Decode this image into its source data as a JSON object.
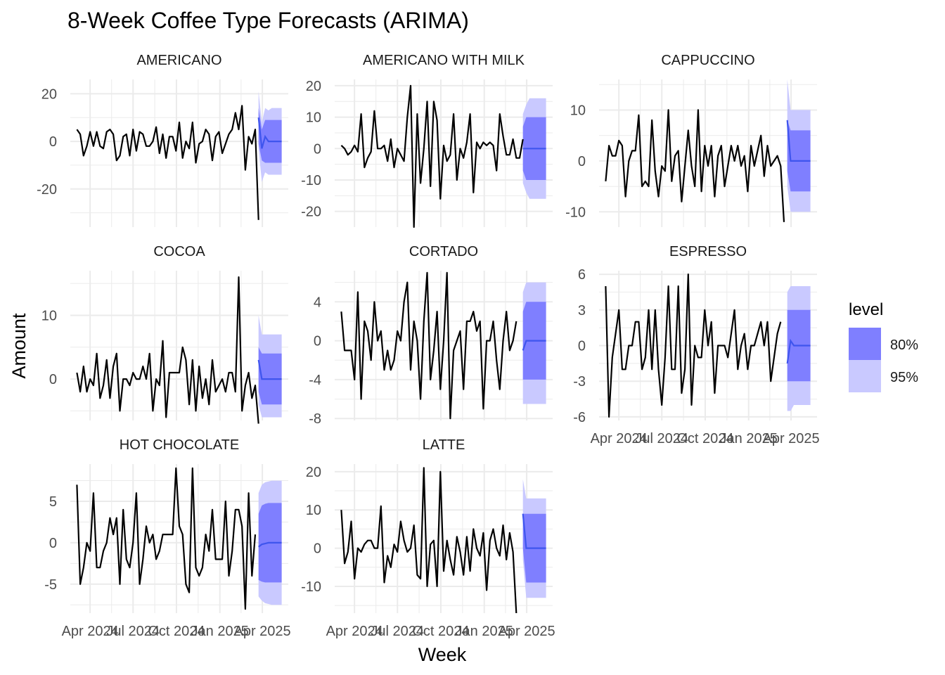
{
  "chart_data": {
    "type": "line",
    "title": "8-Week Coffee Type Forecasts (ARIMA)",
    "xlabel": "Week",
    "ylabel": "Amount",
    "x_tick_labels": [
      "Apr 2024",
      "Jul 2024",
      "Oct 2024",
      "Jan 2025",
      "Apr 2025"
    ],
    "x_tick_dates": [
      "2024-04-01",
      "2024-07-01",
      "2024-10-01",
      "2025-01-01",
      "2025-04-01"
    ],
    "history_start": "2024-03-04",
    "forecast_start": "2025-03-24",
    "xlim": [
      "2024-02-19",
      "2025-05-26"
    ],
    "legend": {
      "title": "level",
      "position": "right",
      "items": [
        {
          "label": "80%",
          "color": "#7f7fff"
        },
        {
          "label": "95%",
          "color": "#c9c9ff"
        }
      ]
    },
    "colors": {
      "history": "#000000",
      "forecast_mean": "#3f55ee",
      "band_80": "#7f7fff",
      "band_95": "#c9c9ff",
      "grid": "#ebebeb"
    },
    "grid": true,
    "panels": [
      {
        "name": "AMERICANO",
        "y_ticks": [
          -20,
          0,
          20
        ],
        "ylim": [
          -36,
          26
        ],
        "history": [
          5,
          3,
          -6,
          -2,
          4,
          -2,
          4,
          -2,
          -3,
          4,
          5,
          3,
          -8,
          -6,
          2,
          3,
          -6,
          5,
          -4,
          4,
          3,
          -2,
          -2,
          0,
          6,
          -5,
          3,
          -7,
          2,
          2,
          -4,
          8,
          -7,
          0,
          -3,
          8,
          -9,
          -1,
          0,
          5,
          3,
          -8,
          2,
          4,
          -5,
          -1,
          3,
          5,
          12,
          5,
          15,
          -12,
          2,
          -1,
          5,
          -33
        ],
        "forecast": {
          "mean": [
            10,
            -3,
            2,
            0,
            0,
            0,
            0,
            0
          ],
          "lo80": [
            -1,
            -8,
            -9,
            -9,
            -9,
            -9,
            -9,
            -9
          ],
          "hi80": [
            14,
            5,
            9,
            9,
            9,
            9,
            9,
            9
          ],
          "lo95": [
            -3,
            -17,
            -13,
            -14,
            -14,
            -14,
            -14,
            -14
          ],
          "hi95": [
            21,
            8,
            14,
            13,
            14,
            14,
            14,
            14
          ]
        }
      },
      {
        "name": "AMERICANO WITH MILK",
        "y_ticks": [
          -20,
          -10,
          0,
          10,
          20
        ],
        "ylim": [
          -25,
          22
        ],
        "history": [
          1,
          0,
          -2,
          -1,
          1,
          -1,
          11,
          -6,
          -3,
          -1,
          12,
          0,
          0,
          1,
          -4,
          3,
          -6,
          0,
          -2,
          -4,
          10,
          20,
          -25,
          11,
          -11,
          0,
          15,
          -12,
          15,
          9,
          -16,
          1,
          -4,
          -2,
          11,
          -10,
          0,
          -3,
          2,
          11,
          -14,
          2,
          0,
          2,
          1,
          2,
          1,
          -7,
          11,
          4,
          -2,
          -2,
          3,
          -3,
          -3,
          3
        ],
        "forecast": {
          "mean": [
            0,
            0,
            0,
            0,
            0,
            0,
            0,
            0
          ],
          "lo80": [
            -7,
            -10,
            -10,
            -10,
            -10,
            -10,
            -10,
            -10
          ],
          "hi80": [
            7,
            10,
            10,
            10,
            10,
            10,
            10,
            10
          ],
          "lo95": [
            -11,
            -14,
            -16,
            -16,
            -16,
            -16,
            -16,
            -16
          ],
          "hi95": [
            11,
            14,
            16,
            16,
            16,
            16,
            16,
            16
          ]
        }
      },
      {
        "name": "CAPPUCCINO",
        "y_ticks": [
          -10,
          0,
          10
        ],
        "ylim": [
          -13,
          16
        ],
        "history": [
          -4,
          3,
          1,
          1,
          4,
          3,
          -7,
          0,
          2,
          2,
          9,
          -5,
          -4,
          -5,
          8,
          -2,
          -7,
          -1,
          -2,
          10,
          -4,
          1,
          2,
          -8,
          -1,
          6,
          -1,
          -5,
          10,
          -6,
          3,
          -1,
          3,
          -7,
          1,
          3,
          -5,
          -1,
          3,
          0,
          3,
          -1,
          1,
          -6,
          3,
          -1,
          2,
          5,
          -3,
          3,
          -1,
          0,
          1,
          -1,
          -12
        ],
        "forecast": {
          "mean": [
            8,
            0,
            0,
            0,
            0,
            0,
            0,
            0
          ],
          "lo80": [
            -2,
            -6,
            -6,
            -6,
            -6,
            -6,
            -6,
            -6
          ],
          "hi80": [
            8,
            6,
            6,
            6,
            6,
            6,
            6,
            6
          ],
          "lo95": [
            -5,
            -10,
            -10,
            -10,
            -10,
            -10,
            -10,
            -10
          ],
          "hi95": [
            16,
            10,
            10,
            10,
            10,
            10,
            10,
            10
          ]
        }
      },
      {
        "name": "COCOA",
        "y_ticks": [
          0,
          10
        ],
        "ylim": [
          -6.5,
          17
        ],
        "history": [
          1,
          -2,
          2,
          -2,
          0,
          -1,
          4,
          -3,
          -1,
          3,
          -3,
          2,
          4,
          -5,
          0,
          0,
          -1,
          1,
          0,
          0,
          2,
          0,
          4,
          -5,
          0,
          -1,
          6,
          -6,
          1,
          1,
          1,
          1,
          5,
          3,
          -4,
          3,
          -5,
          2,
          -3,
          0,
          -4,
          3,
          -2,
          -1,
          0,
          -2,
          1,
          1,
          -2,
          16,
          -5,
          -1,
          1,
          -3,
          -1,
          -7
        ],
        "forecast": {
          "mean": [
            3,
            0,
            0,
            0,
            0,
            0,
            0,
            0
          ],
          "lo80": [
            -2,
            -4,
            -4,
            -4,
            -4,
            -4,
            -4,
            -4
          ],
          "hi80": [
            5,
            4,
            4,
            4,
            4,
            4,
            4,
            4
          ],
          "lo95": [
            -4,
            -6,
            -6,
            -6,
            -6,
            -6,
            -6,
            -6
          ],
          "hi95": [
            10,
            7,
            7,
            7,
            7,
            7,
            7,
            7
          ]
        }
      },
      {
        "name": "CORTADO",
        "y_ticks": [
          -8,
          -4,
          0,
          4
        ],
        "ylim": [
          -8.2,
          7.2
        ],
        "history": [
          3,
          -1,
          -1,
          -1,
          -4,
          5,
          -6,
          2,
          1,
          -2,
          4,
          0,
          1,
          -3,
          -1,
          -3,
          -2,
          1,
          0,
          4,
          6,
          -3,
          2,
          0,
          -6,
          2,
          7,
          -4,
          -1,
          3,
          -5,
          0,
          7,
          -8,
          -1,
          0,
          1,
          -5,
          2,
          2,
          3,
          1,
          2,
          -7,
          0,
          0,
          2,
          -2,
          -5,
          0,
          3,
          -1,
          0,
          2
        ],
        "forecast": {
          "mean": [
            -1,
            0,
            0,
            0,
            0,
            0,
            0,
            0
          ],
          "lo80": [
            -4,
            -4,
            -4,
            -4,
            -4,
            -4,
            -4,
            -4
          ],
          "hi80": [
            3,
            4,
            4,
            4,
            4,
            4,
            4,
            4
          ],
          "lo95": [
            -6.5,
            -6.5,
            -6.5,
            -6.5,
            -6.5,
            -6.5,
            -6.5,
            -6.5
          ],
          "hi95": [
            5,
            6,
            6,
            6,
            6,
            6,
            6,
            6
          ]
        }
      },
      {
        "name": "ESPRESSO",
        "y_ticks": [
          -6,
          -3,
          0,
          3,
          6
        ],
        "ylim": [
          -6.3,
          6.3
        ],
        "history": [
          5,
          -6,
          -1,
          1,
          3,
          -2,
          -2,
          0,
          0,
          2,
          2,
          -2,
          -1,
          3,
          -2,
          3,
          -2,
          -5,
          -1,
          5,
          -2,
          -2,
          5,
          -4,
          -2,
          6,
          -5,
          0,
          -1,
          -1,
          3,
          0,
          2,
          -4,
          0,
          0,
          0,
          -1,
          1,
          3,
          -2,
          0,
          1,
          -2,
          0,
          0,
          1,
          2,
          0,
          2,
          -3,
          -1,
          1,
          2
        ],
        "forecast": {
          "mean": [
            -1.5,
            0.4,
            0,
            0,
            0,
            0,
            0,
            0
          ],
          "lo80": [
            -3,
            -3,
            -3,
            -3,
            -3,
            -3,
            -3,
            -3
          ],
          "hi80": [
            3,
            3,
            3,
            3,
            3,
            3,
            3,
            3
          ],
          "lo95": [
            -5.5,
            -5.5,
            -5,
            -5,
            -5,
            -5,
            -5,
            -5
          ],
          "hi95": [
            4.5,
            5,
            5,
            5,
            5,
            5,
            5,
            5
          ]
        }
      },
      {
        "name": "HOT CHOCOLATE",
        "y_ticks": [
          -5,
          0,
          5
        ],
        "ylim": [
          -8.5,
          9.5
        ],
        "history": [
          7,
          -5,
          -3,
          0,
          -1,
          6,
          -3,
          -3,
          -1,
          0,
          3,
          1,
          3,
          -5,
          4,
          -2,
          -3,
          0,
          6,
          -5,
          -2,
          2,
          0,
          1,
          -2,
          -1,
          1,
          1,
          1,
          1,
          9,
          2,
          1,
          -5,
          -6,
          9,
          -3,
          -4,
          -3,
          1,
          -1,
          4,
          -2,
          -2,
          -2,
          5,
          -4,
          -1,
          4,
          4,
          2,
          -8,
          6,
          -4,
          1
        ],
        "forecast": {
          "mean": [
            -0.5,
            -0.2,
            -0.1,
            0,
            0,
            0,
            0,
            0
          ],
          "lo80": [
            -4.5,
            -4.7,
            -4.8,
            -4.8,
            -4.8,
            -4.8,
            -4.8,
            -4.8
          ],
          "hi80": [
            3.5,
            4.5,
            4.7,
            4.8,
            4.8,
            4.8,
            4.8,
            4.8
          ],
          "lo95": [
            -6.5,
            -7,
            -7.3,
            -7.4,
            -7.5,
            -7.5,
            -7.5,
            -7.5
          ],
          "hi95": [
            6,
            7,
            7.3,
            7.4,
            7.5,
            7.5,
            7.5,
            7.5
          ]
        }
      },
      {
        "name": "LATTE",
        "y_ticks": [
          -10,
          0,
          10,
          20
        ],
        "ylim": [
          -17,
          22
        ],
        "history": [
          10,
          -4,
          -1,
          7,
          -8,
          0,
          -1,
          1,
          2,
          2,
          0,
          0,
          11,
          -9,
          -2,
          -5,
          1,
          -1,
          7,
          2,
          -1,
          0,
          6,
          -7,
          -8,
          21,
          -10,
          1,
          2,
          -10,
          20,
          -6,
          2,
          -3,
          -7,
          3,
          -1,
          -7,
          3,
          -6,
          5,
          0,
          -2,
          4,
          -11,
          2,
          5,
          0,
          -2,
          6,
          -3,
          4,
          -1,
          -17
        ],
        "forecast": {
          "mean": [
            9,
            0,
            0,
            0,
            0,
            0,
            0,
            0
          ],
          "lo80": [
            0,
            -9,
            -9,
            -9,
            -9,
            -9,
            -9,
            -9
          ],
          "hi80": [
            9,
            9,
            9,
            9,
            9,
            9,
            9,
            9
          ],
          "lo95": [
            -3,
            -13,
            -13,
            -13,
            -13,
            -13,
            -13,
            -13
          ],
          "hi95": [
            18,
            13,
            13,
            13,
            13,
            13,
            13,
            13
          ]
        }
      }
    ]
  }
}
